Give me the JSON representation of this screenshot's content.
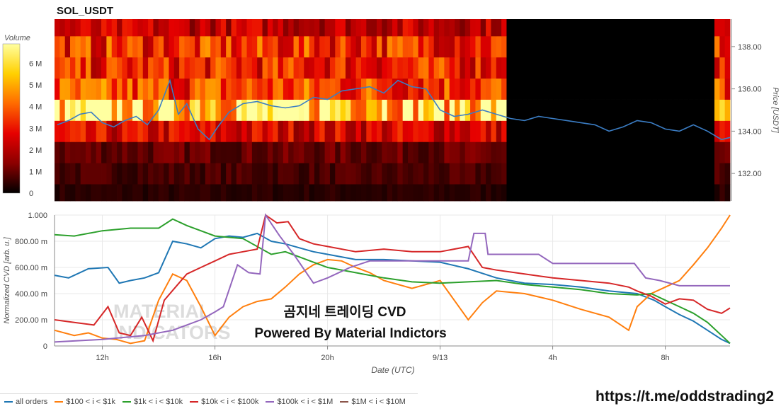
{
  "title": "SOL_USDT",
  "footer_url": "https://t.me/oddstrading2",
  "watermark_lines": [
    "MATERIAL",
    "INDICATORS"
  ],
  "overlay_text": [
    "곰지네 트레이딩 CVD",
    "Powered By Material Indictors"
  ],
  "chart_data": [
    {
      "type": "heatmap",
      "title": "SOL_USDT",
      "colorbar_label": "Volume",
      "colorbar_ticks": [
        "0",
        "1 M",
        "2 M",
        "3 M",
        "4 M",
        "5 M",
        "6 M"
      ],
      "colorbar_range": [
        0,
        6900000
      ],
      "colorscale": [
        "#000000",
        "#8b0000",
        "#e60000",
        "#ff6a00",
        "#ffd000",
        "#ffffa0"
      ],
      "ylabel": "Price [USDT]",
      "y_ticks": [
        "132.00",
        "134.00",
        "136.00",
        "138.00"
      ],
      "ylim": [
        130.7,
        139.3
      ],
      "price_rows": [
        131.0,
        132.0,
        133.0,
        134.0,
        135.0,
        136.0,
        137.0,
        138.0,
        139.0
      ],
      "row_base_volume_m": [
        0.4,
        0.7,
        1.0,
        2.5,
        6.2,
        3.6,
        3.1,
        3.3,
        2.2
      ],
      "no_data_range_hours": [
        26.3,
        34.3
      ],
      "price_line_color": "#3b7dc4",
      "price_series": {
        "x": [
          10.4,
          10.8,
          11.2,
          11.6,
          12.0,
          12.4,
          12.8,
          13.2,
          13.6,
          14.0,
          14.4,
          14.7,
          15.0,
          15.4,
          15.8,
          16.1,
          16.5,
          17.0,
          17.5,
          18.0,
          18.5,
          19.0,
          19.5,
          20.0,
          20.5,
          21.0,
          21.5,
          22.0,
          22.5,
          23.0,
          23.5,
          24.0,
          24.5,
          25.0,
          25.5,
          26.0,
          26.5,
          27.0,
          27.5,
          28.0,
          28.5,
          29.0,
          29.5,
          30.0,
          30.5,
          31.0,
          31.5,
          32.0,
          32.5,
          33.0,
          33.5,
          34.0,
          34.3
        ],
        "y": [
          134.3,
          134.5,
          134.8,
          134.9,
          134.4,
          134.2,
          134.5,
          134.7,
          134.3,
          135.0,
          136.4,
          134.8,
          135.3,
          134.1,
          133.6,
          134.2,
          134.9,
          135.3,
          135.4,
          135.2,
          135.1,
          135.2,
          135.6,
          135.5,
          135.9,
          136.0,
          136.1,
          135.8,
          136.4,
          136.1,
          136.0,
          135.0,
          134.7,
          134.8,
          135.0,
          134.8,
          134.6,
          134.5,
          134.7,
          134.6,
          134.5,
          134.4,
          134.3,
          134.0,
          134.2,
          134.5,
          134.4,
          134.1,
          134.0,
          134.3,
          134.0,
          133.6,
          133.7
        ]
      }
    },
    {
      "type": "line",
      "xlabel": "Date (UTC)",
      "ylabel": "Normalized CVD [arb. u.]",
      "x_ticks": [
        "12h",
        "16h",
        "20h",
        "9/13",
        "4h",
        "8h"
      ],
      "x_tick_hours": [
        12,
        16,
        20,
        24,
        28,
        32
      ],
      "xlim": [
        10.3,
        34.3
      ],
      "y_ticks": [
        "0",
        "200.00 m",
        "400.00 m",
        "600.00 m",
        "800.00 m",
        "1.000"
      ],
      "ylim": [
        0,
        1
      ],
      "grid": true,
      "series": [
        {
          "name": "all orders",
          "color": "#1f77b4",
          "x": [
            10.3,
            10.8,
            11.5,
            12.2,
            12.6,
            13.0,
            13.5,
            14.0,
            14.5,
            15.0,
            15.5,
            16.0,
            16.5,
            17.0,
            17.5,
            18.0,
            18.5,
            19.0,
            19.5,
            20.0,
            21.0,
            22.0,
            23.0,
            24.0,
            25.0,
            26.0,
            27.0,
            28.0,
            29.0,
            30.0,
            31.0,
            31.6,
            32.0,
            32.5,
            33.0,
            33.5,
            34.0,
            34.3
          ],
          "y": [
            0.54,
            0.52,
            0.59,
            0.6,
            0.48,
            0.5,
            0.52,
            0.56,
            0.8,
            0.78,
            0.75,
            0.82,
            0.84,
            0.83,
            0.86,
            0.8,
            0.78,
            0.75,
            0.72,
            0.7,
            0.66,
            0.66,
            0.65,
            0.64,
            0.59,
            0.52,
            0.48,
            0.47,
            0.45,
            0.42,
            0.4,
            0.35,
            0.3,
            0.24,
            0.19,
            0.12,
            0.05,
            0.02
          ]
        },
        {
          "name": "$100 < i < $1k",
          "color": "#ff7f0e",
          "x": [
            10.3,
            11.0,
            11.5,
            12.0,
            12.5,
            13.0,
            13.5,
            14.0,
            14.5,
            15.0,
            15.5,
            16.0,
            16.5,
            17.0,
            17.5,
            18.0,
            18.5,
            19.0,
            19.5,
            20.0,
            20.5,
            21.0,
            21.5,
            22.0,
            23.0,
            24.0,
            24.5,
            25.0,
            25.5,
            26.0,
            27.0,
            28.0,
            29.0,
            30.0,
            30.7,
            31.0,
            31.5,
            32.0,
            32.5,
            33.0,
            33.5,
            34.0,
            34.3
          ],
          "y": [
            0.12,
            0.08,
            0.1,
            0.06,
            0.05,
            0.02,
            0.04,
            0.35,
            0.55,
            0.5,
            0.3,
            0.08,
            0.22,
            0.3,
            0.34,
            0.36,
            0.45,
            0.55,
            0.62,
            0.66,
            0.65,
            0.6,
            0.56,
            0.5,
            0.44,
            0.5,
            0.35,
            0.2,
            0.33,
            0.42,
            0.4,
            0.35,
            0.28,
            0.22,
            0.12,
            0.3,
            0.4,
            0.45,
            0.5,
            0.62,
            0.75,
            0.9,
            1.0
          ]
        },
        {
          "name": "$1k < i < $10k",
          "color": "#2ca02c",
          "x": [
            10.3,
            11.0,
            12.0,
            13.0,
            14.0,
            14.5,
            15.0,
            15.5,
            16.0,
            17.0,
            18.0,
            18.5,
            19.0,
            20.0,
            21.0,
            22.0,
            23.0,
            24.0,
            25.0,
            26.0,
            27.0,
            28.0,
            29.0,
            30.0,
            31.0,
            31.5,
            32.0,
            32.5,
            33.0,
            33.5,
            34.0,
            34.3
          ],
          "y": [
            0.85,
            0.84,
            0.88,
            0.9,
            0.9,
            0.97,
            0.92,
            0.88,
            0.84,
            0.82,
            0.7,
            0.72,
            0.68,
            0.6,
            0.56,
            0.52,
            0.49,
            0.48,
            0.49,
            0.5,
            0.47,
            0.45,
            0.43,
            0.4,
            0.39,
            0.4,
            0.35,
            0.3,
            0.25,
            0.18,
            0.08,
            0.02
          ]
        },
        {
          "name": "$10k < i < $100k",
          "color": "#d62728",
          "x": [
            10.3,
            11.0,
            11.7,
            12.2,
            12.6,
            13.0,
            13.4,
            13.8,
            14.2,
            14.6,
            15.0,
            15.5,
            16.0,
            16.5,
            17.0,
            17.5,
            17.8,
            18.2,
            18.6,
            19.0,
            19.5,
            20.0,
            21.0,
            22.0,
            23.0,
            24.0,
            25.0,
            25.5,
            26.0,
            27.0,
            28.0,
            29.0,
            30.0,
            30.7,
            31.0,
            31.5,
            32.0,
            32.5,
            33.0,
            33.5,
            34.0,
            34.3
          ],
          "y": [
            0.2,
            0.18,
            0.16,
            0.3,
            0.1,
            0.08,
            0.22,
            0.04,
            0.35,
            0.45,
            0.55,
            0.6,
            0.65,
            0.7,
            0.72,
            0.74,
            1.0,
            0.94,
            0.95,
            0.82,
            0.78,
            0.76,
            0.72,
            0.74,
            0.72,
            0.72,
            0.76,
            0.6,
            0.58,
            0.55,
            0.52,
            0.5,
            0.48,
            0.45,
            0.42,
            0.38,
            0.32,
            0.36,
            0.35,
            0.28,
            0.25,
            0.29
          ]
        },
        {
          "name": "$100k < i < $1M",
          "color": "#9467bd",
          "x": [
            10.3,
            12.0,
            13.5,
            14.5,
            15.5,
            16.0,
            16.3,
            16.8,
            17.2,
            17.6,
            17.8,
            18.3,
            18.8,
            19.5,
            20.0,
            20.8,
            21.5,
            22.5,
            24.0,
            25.0,
            25.2,
            25.6,
            25.7,
            26.5,
            27.5,
            28.0,
            29.0,
            30.0,
            30.9,
            31.3,
            31.8,
            32.5,
            33.5,
            34.3
          ],
          "y": [
            0.03,
            0.05,
            0.08,
            0.12,
            0.2,
            0.26,
            0.3,
            0.62,
            0.56,
            0.55,
            1.0,
            0.84,
            0.7,
            0.48,
            0.52,
            0.6,
            0.65,
            0.65,
            0.65,
            0.65,
            0.86,
            0.86,
            0.7,
            0.7,
            0.7,
            0.63,
            0.63,
            0.63,
            0.63,
            0.52,
            0.5,
            0.46,
            0.46,
            0.46
          ]
        },
        {
          "name": "$1M < i < $10M",
          "color": "#8c564b",
          "x": [],
          "y": []
        }
      ]
    }
  ]
}
